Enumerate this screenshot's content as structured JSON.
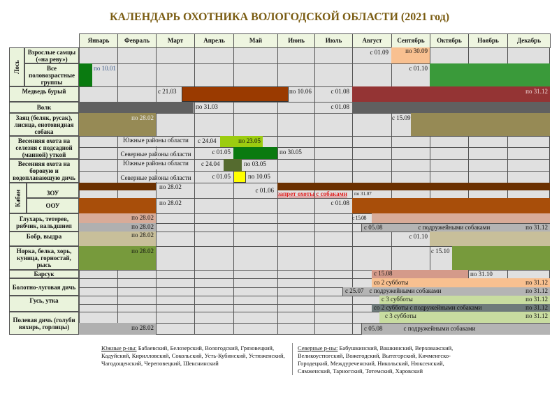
{
  "title": "КАЛЕНДАРЬ ОХОТНИКА ВОЛОГОДСКОЙ ОБЛАСТИ  (2021 год)",
  "months": [
    "Январь",
    "Февраль",
    "Март",
    "Апрель",
    "Май",
    "Июнь",
    "Июль",
    "Август",
    "Сентябрь",
    "Октябрь",
    "Ноябрь",
    "Декабрь"
  ],
  "groups": {
    "moose": "Лось",
    "boar": "Кабан"
  },
  "labels": {
    "moose_adult": "Взрослые самцы («на реву»)",
    "moose_all": "Все половозрастные группы",
    "bear": "Медведь бурый",
    "wolf": "Волк",
    "hare": "Заяц (беляк, русак), лисица, енотовидная собака",
    "drake": "Весенняя охота на селезня с подсадной (манной) уткой",
    "fowl": "Весенняя охота на боровую и водоплавающую дичь",
    "zou": "ЗОУ",
    "oou": "ООУ",
    "grouse": "Глухарь, тетерев, рябчик, вальдшнеп",
    "beaver": "Бобр, выдра",
    "mink": "Норка, белка, хорь, куница, горностай, рысь",
    "badger": "Барсук",
    "marsh": "Болотно-луговая дичь",
    "goose": "Гусь, утка",
    "field": "Полевая дичь (голуби вяхирь, горлицы)"
  },
  "regions": {
    "south": "Южные районы области",
    "north": "Северные районы области"
  },
  "dates": {
    "moose_adult_from": "с 01.09",
    "moose_adult_to": "по 30.09",
    "moose_all_to": "по 10.01",
    "moose_all_from": "с  01.10",
    "bear_from1": "с 21.03",
    "bear_to1": "по 10.06",
    "bear_from2": "с 01.08",
    "bear_to2": "по 31.12",
    "wolf_to": "по 31.03",
    "wolf_from": "с 01.08",
    "hare_to": "по 28.02",
    "hare_from": "с 15.09",
    "drake_s_from": "с 24.04",
    "drake_s_to": "по 23.05",
    "drake_n_from": "с 01.05",
    "drake_n_to": "по 30.05",
    "fowl_s_from": "с 24.04",
    "fowl_s_to": "по 03.05",
    "fowl_n_from": "с 01.05",
    "fowl_n_to": "по 10.05",
    "zou_to": "по 28.02",
    "zou_from": "с 01.06",
    "zou_ban": "запрет охоты с собаками",
    "zou_ban_to": "по 31.07",
    "oou_to": "по 28.02",
    "oou_from": "с 01.08",
    "grouse_to": "по 28.02",
    "grouse_from": "с 15.08",
    "grouse_dog_to1": "по 28.02",
    "grouse_dog_from": "с 05.08",
    "grouse_dog_note": "с подружейными собаками",
    "grouse_dog_to2": "по 31.12",
    "beaver_to": "по 28.02",
    "beaver_from": "с  01.10",
    "mink_to": "по 28.02",
    "mink_from": "с 15.10",
    "badger_from": "с 15.08",
    "badger_to": "по 31.10",
    "marsh_from": "со 2 субботы",
    "marsh_to": "по 31.12",
    "marsh_dog_from": "с 25.07",
    "marsh_dog_note": "с подружейными собаками",
    "marsh_dog_to": "по 31.12",
    "goose_from": "с 3 субботы",
    "goose_to": "по 31.12",
    "goose_dog_from": "со 2 субботы с подружейными собаками",
    "goose_dog_to": "по 31.12",
    "field_from": "с 3 субботы",
    "field_to": "по 31.12",
    "field_dog_to": "по 28.02",
    "field_dog_from": "с 05.08",
    "field_dog_note": "с подружейными собаками"
  },
  "footer": {
    "south_label": "Южные р-ны:",
    "south": " Бабаевский, Белозерский, Вологодский, Грязовецкий, Кадуйский, Кирилловский, Сокольский, Усть-Кубинский, Устюженский, Чагодощенский, Череповецкий, Шекснинский",
    "north_label": "Северные р-ны:",
    "north": " Бабушкинский, Вашкинский, Верховажский, Великоустюгский, Вожегодский, Вытегорский, Кичменгско-Городецкий, Междуреченский, Никольский, Нюксенский, Сямженский, Тарногский, Тотемский, Харовский"
  }
}
